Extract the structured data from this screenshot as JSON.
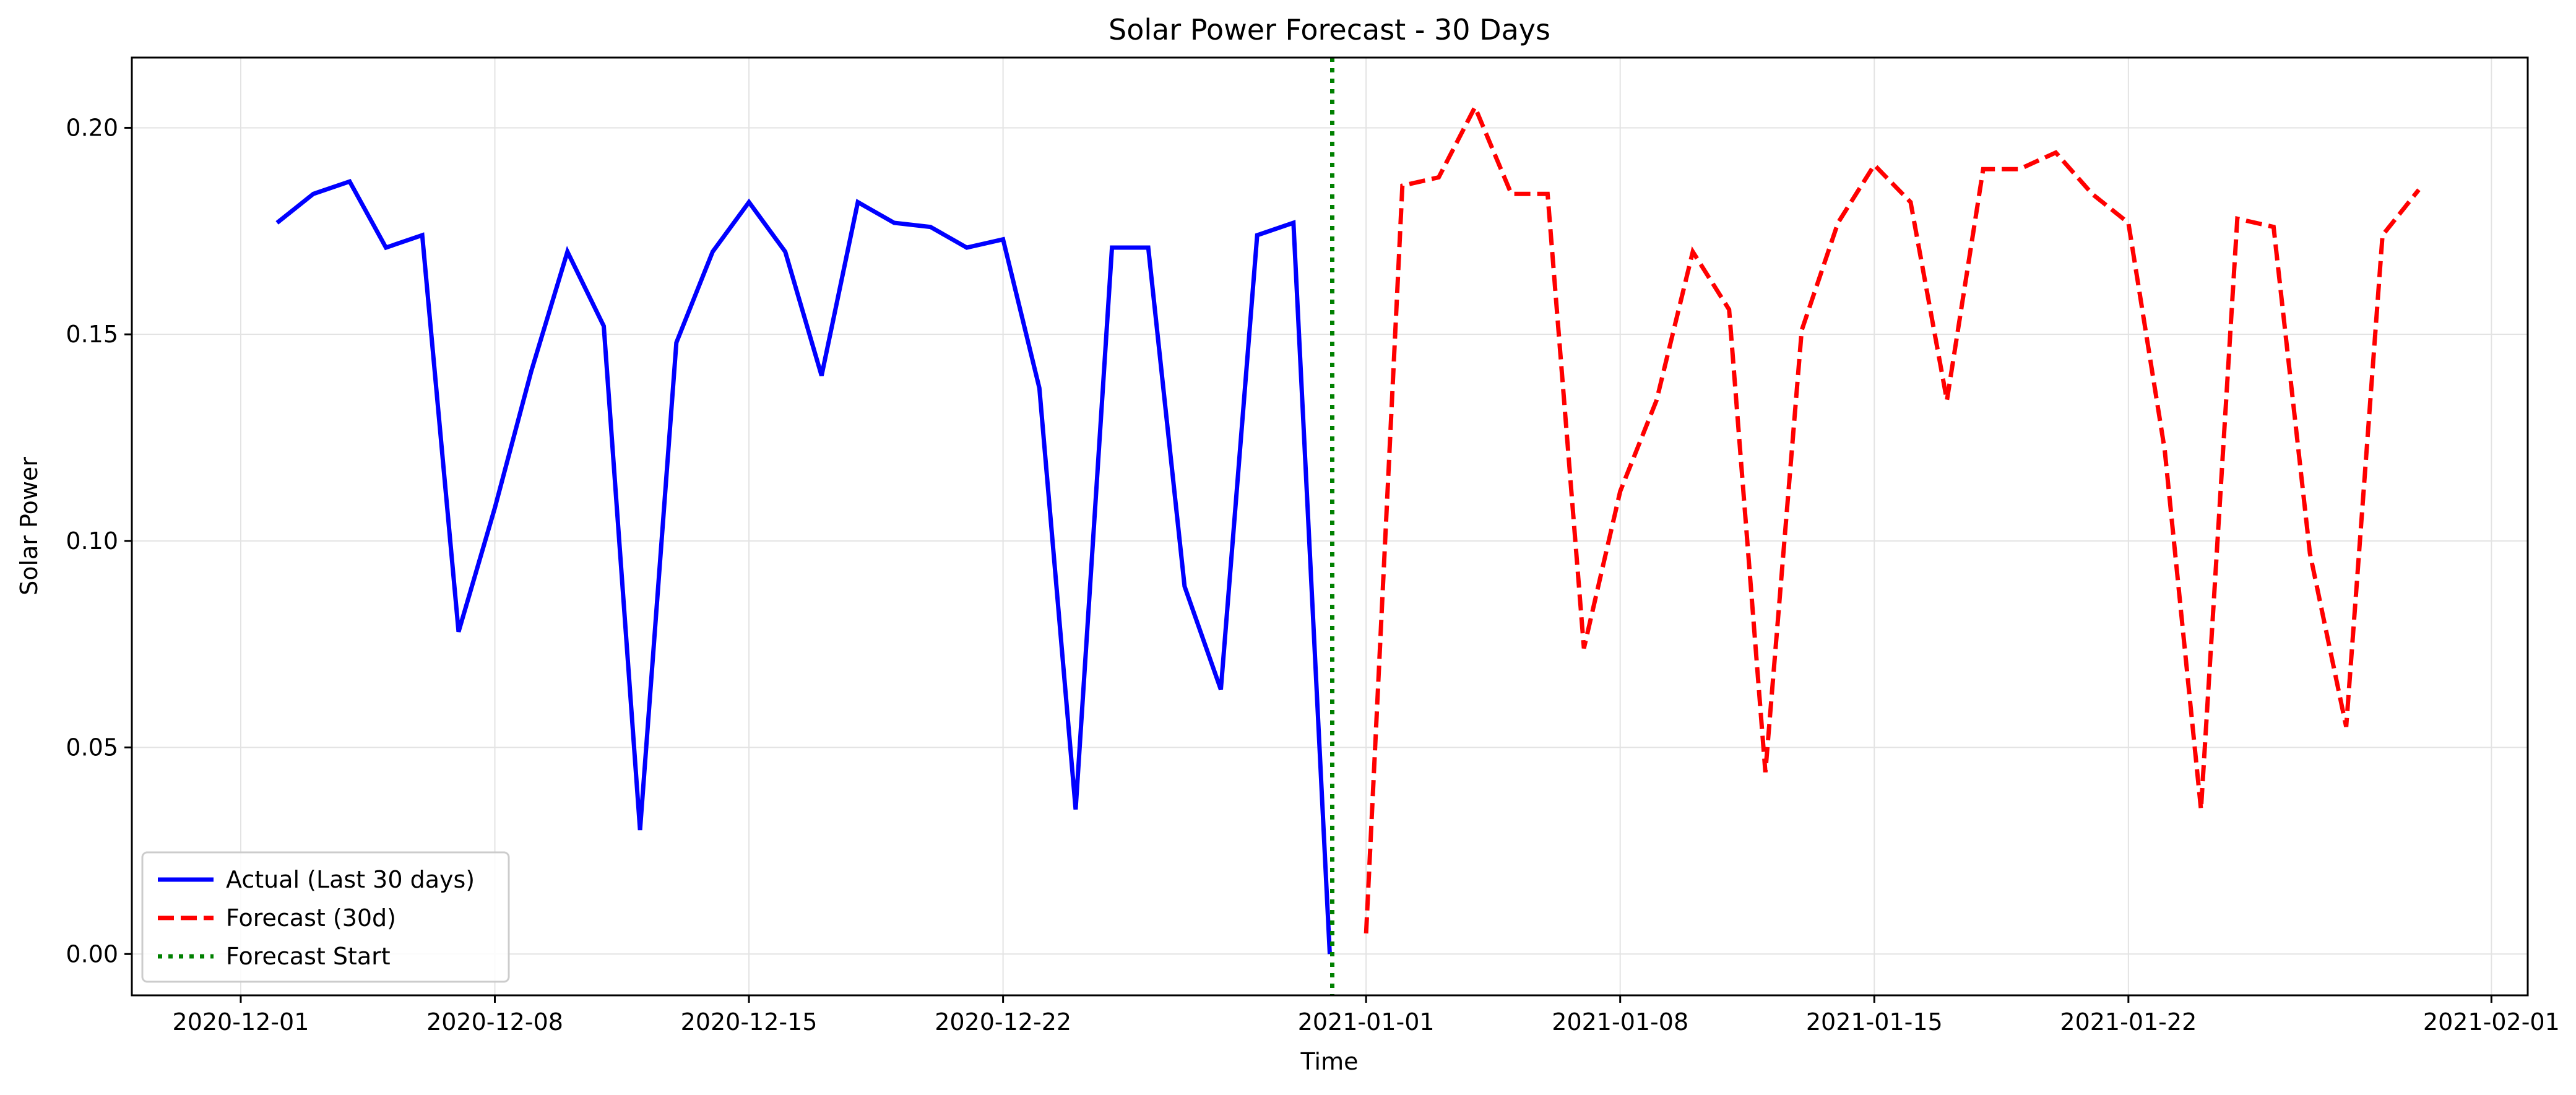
{
  "chart_data": {
    "type": "line",
    "title": "Solar Power Forecast - 30 Days",
    "xlabel": "Time",
    "ylabel": "Solar Power",
    "grid": true,
    "legend_position": "lower-left",
    "xlim": [
      "2020-11-28",
      "2021-02-02"
    ],
    "ylim": [
      -0.01,
      0.217
    ],
    "x_ticks": [
      "2020-12-01",
      "2020-12-08",
      "2020-12-15",
      "2020-12-22",
      "2021-01-01",
      "2021-01-08",
      "2021-01-15",
      "2021-01-22",
      "2021-02-01"
    ],
    "y_ticks": [
      "0.00",
      "0.05",
      "0.10",
      "0.15",
      "0.20"
    ],
    "series": [
      {
        "name": "Actual (Last 30 days)",
        "color": "#0000ff",
        "style": "solid",
        "x": [
          "2020-12-02",
          "2020-12-03",
          "2020-12-04",
          "2020-12-05",
          "2020-12-06",
          "2020-12-07",
          "2020-12-08",
          "2020-12-09",
          "2020-12-10",
          "2020-12-11",
          "2020-12-12",
          "2020-12-13",
          "2020-12-14",
          "2020-12-15",
          "2020-12-16",
          "2020-12-17",
          "2020-12-18",
          "2020-12-19",
          "2020-12-20",
          "2020-12-21",
          "2020-12-22",
          "2020-12-23",
          "2020-12-24",
          "2020-12-25",
          "2020-12-26",
          "2020-12-27",
          "2020-12-28",
          "2020-12-29",
          "2020-12-30",
          "2020-12-31"
        ],
        "y": [
          0.177,
          0.184,
          0.187,
          0.171,
          0.174,
          0.078,
          0.108,
          0.141,
          0.17,
          0.152,
          0.03,
          0.148,
          0.17,
          0.182,
          0.17,
          0.14,
          0.182,
          0.177,
          0.176,
          0.171,
          0.173,
          0.137,
          0.035,
          0.171,
          0.171,
          0.089,
          0.064,
          0.174,
          0.177,
          0.0
        ]
      },
      {
        "name": "Forecast (30d)",
        "color": "#ff0000",
        "style": "dashed",
        "x": [
          "2021-01-01",
          "2021-01-02",
          "2021-01-03",
          "2021-01-04",
          "2021-01-05",
          "2021-01-06",
          "2021-01-07",
          "2021-01-08",
          "2021-01-09",
          "2021-01-10",
          "2021-01-11",
          "2021-01-12",
          "2021-01-13",
          "2021-01-14",
          "2021-01-15",
          "2021-01-16",
          "2021-01-17",
          "2021-01-18",
          "2021-01-19",
          "2021-01-20",
          "2021-01-21",
          "2021-01-22",
          "2021-01-23",
          "2021-01-24",
          "2021-01-25",
          "2021-01-26",
          "2021-01-27",
          "2021-01-28",
          "2021-01-29",
          "2021-01-30"
        ],
        "y": [
          0.005,
          0.186,
          0.188,
          0.205,
          0.184,
          0.184,
          0.074,
          0.112,
          0.134,
          0.17,
          0.156,
          0.044,
          0.151,
          0.177,
          0.191,
          0.182,
          0.134,
          0.19,
          0.19,
          0.194,
          0.184,
          0.177,
          0.122,
          0.035,
          0.178,
          0.176,
          0.097,
          0.055,
          0.174,
          0.185
        ]
      }
    ],
    "vlines": [
      {
        "name": "Forecast Start",
        "color": "#008000",
        "style": "dotted",
        "x": "2020-12-31"
      }
    ]
  }
}
